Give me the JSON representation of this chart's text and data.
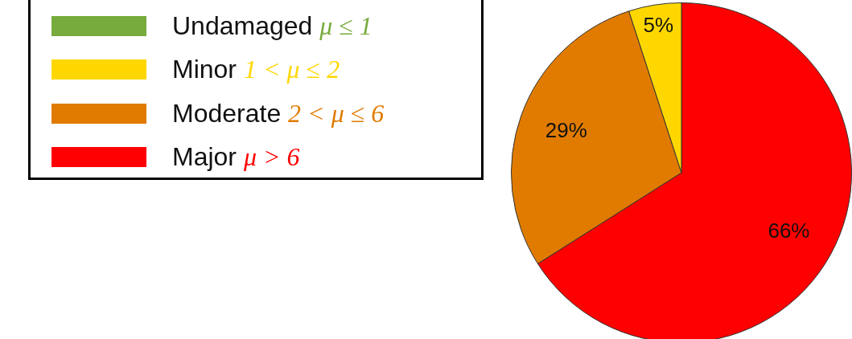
{
  "chart_data": {
    "type": "pie",
    "categories": [
      "Undamaged μ ≤ 1",
      "Minor 1 < μ ≤ 2",
      "Moderate 2 < μ ≤ 6",
      "Major μ > 6"
    ],
    "values": [
      0,
      5,
      29,
      66
    ],
    "colors": [
      "#77ab3d",
      "#ffd700",
      "#e07b00",
      "#ff0000"
    ],
    "value_labels": [
      null,
      "5%",
      "29%",
      "66%"
    ],
    "legend": "left"
  }
}
